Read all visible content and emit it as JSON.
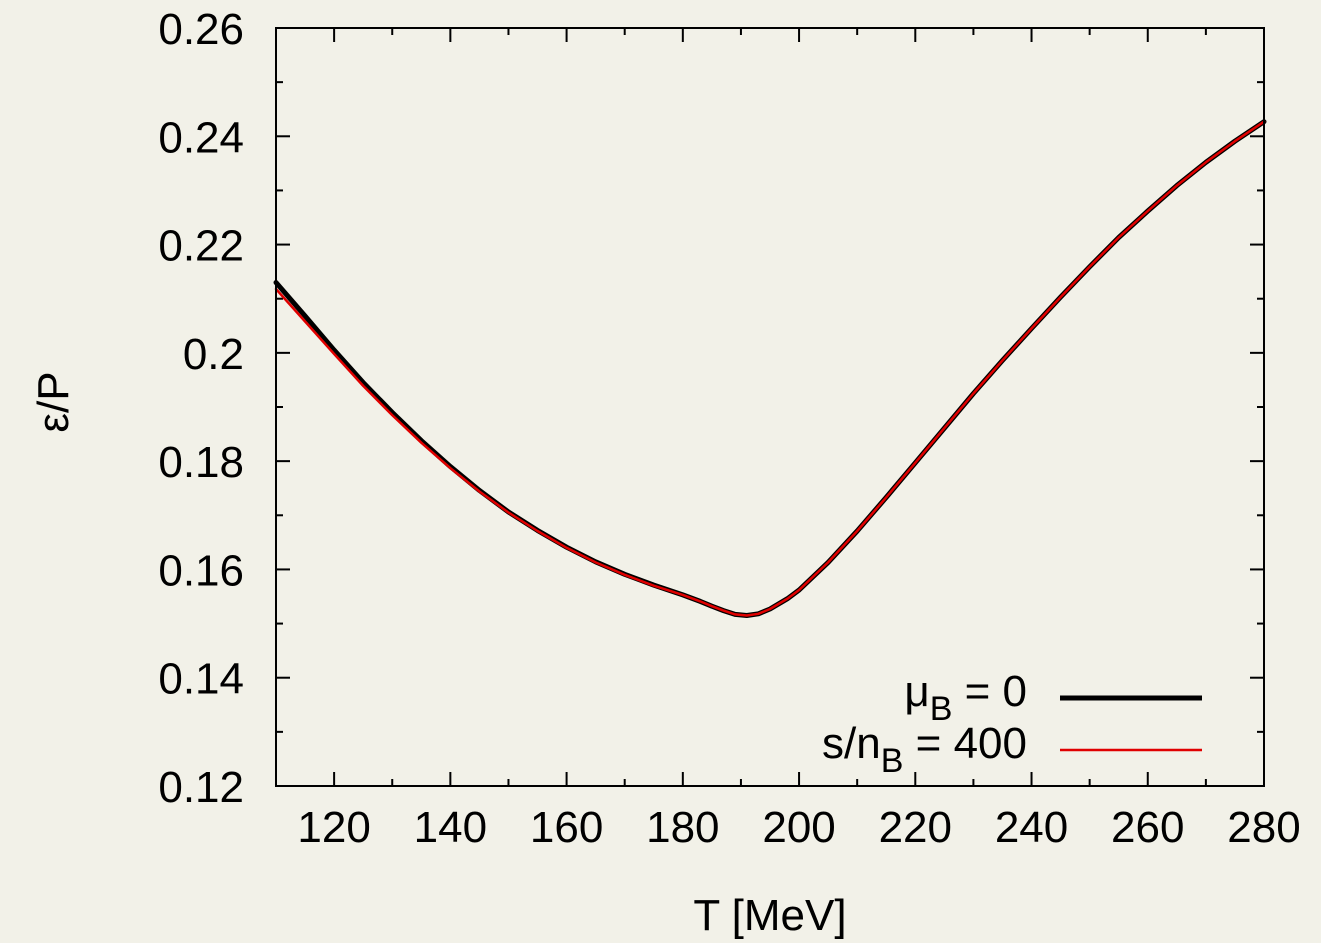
{
  "chart_data": {
    "type": "line",
    "xlabel": "T [MeV]",
    "ylabel": "ε/P",
    "xlim": [
      110,
      280
    ],
    "ylim": [
      0.12,
      0.26
    ],
    "xticks": [
      120,
      140,
      160,
      180,
      200,
      220,
      240,
      260,
      280
    ],
    "yticks": [
      0.12,
      0.14,
      0.16,
      0.18,
      0.2,
      0.22,
      0.24,
      0.26
    ],
    "xtick_labels": [
      "120",
      "140",
      "160",
      "180",
      "200",
      "220",
      "240",
      "260",
      "280"
    ],
    "ytick_labels": [
      "0.12",
      "0.14",
      "0.16",
      "0.18",
      "0.2",
      "0.22",
      "0.24",
      "0.26"
    ],
    "grid": false,
    "legend_position": "bottom-right",
    "series": [
      {
        "name": "μB = 0",
        "legend": {
          "main": "μ",
          "sub": "B",
          "rest": " = 0"
        },
        "color": "#000000",
        "x": [
          110,
          115,
          120,
          125,
          130,
          135,
          140,
          145,
          150,
          155,
          160,
          165,
          170,
          175,
          180,
          183,
          185,
          187,
          189,
          191,
          193,
          195,
          198,
          200,
          205,
          210,
          215,
          220,
          225,
          230,
          235,
          240,
          245,
          250,
          255,
          260,
          265,
          270,
          275,
          280
        ],
        "y": [
          0.213,
          0.2068,
          0.2005,
          0.1945,
          0.189,
          0.1838,
          0.179,
          0.1746,
          0.1706,
          0.1672,
          0.1641,
          0.1614,
          0.1591,
          0.1571,
          0.1553,
          0.1541,
          0.1532,
          0.1524,
          0.1517,
          0.1515,
          0.1518,
          0.1527,
          0.1546,
          0.1562,
          0.1613,
          0.1671,
          0.1733,
          0.1797,
          0.1861,
          0.1925,
          0.1986,
          0.2045,
          0.2103,
          0.2159,
          0.2213,
          0.2262,
          0.2309,
          0.2352,
          0.2391,
          0.2427
        ]
      },
      {
        "name": "s/nB = 400",
        "legend": {
          "main": "s/n",
          "sub": "B",
          "rest": " = 400"
        },
        "color": "#e00000",
        "x": [
          110,
          115,
          120,
          125,
          130,
          135,
          140,
          145,
          150,
          155,
          160,
          165,
          170,
          175,
          180,
          183,
          185,
          187,
          189,
          191,
          193,
          195,
          198,
          200,
          205,
          210,
          215,
          220,
          225,
          230,
          235,
          240,
          245,
          250,
          255,
          260,
          265,
          270,
          275,
          280
        ],
        "y": [
          0.2118,
          0.2058,
          0.1998,
          0.1939,
          0.1885,
          0.1834,
          0.1787,
          0.1744,
          0.1705,
          0.1671,
          0.164,
          0.1613,
          0.159,
          0.157,
          0.1553,
          0.1541,
          0.1532,
          0.1524,
          0.1517,
          0.1515,
          0.1518,
          0.1527,
          0.1546,
          0.1562,
          0.1613,
          0.1671,
          0.1733,
          0.1797,
          0.1861,
          0.1925,
          0.1986,
          0.2045,
          0.2103,
          0.2159,
          0.2213,
          0.2262,
          0.2309,
          0.2352,
          0.2391,
          0.2427
        ]
      }
    ]
  }
}
